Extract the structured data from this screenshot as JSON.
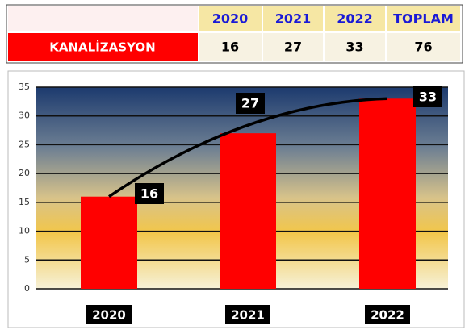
{
  "table": {
    "columns": [
      "2020",
      "2021",
      "2022",
      "TOPLAM"
    ],
    "row_label": "KANALİZASYON",
    "row_values": [
      16,
      27,
      33,
      76
    ]
  },
  "chart_data": {
    "type": "bar",
    "categories": [
      "2020",
      "2021",
      "2022"
    ],
    "values": [
      16,
      27,
      33
    ],
    "color": "#ff0000",
    "ylim": [
      0,
      35
    ],
    "yticks": [
      0,
      5,
      10,
      15,
      20,
      25,
      30,
      35
    ],
    "grid": true,
    "trend_line": true
  }
}
